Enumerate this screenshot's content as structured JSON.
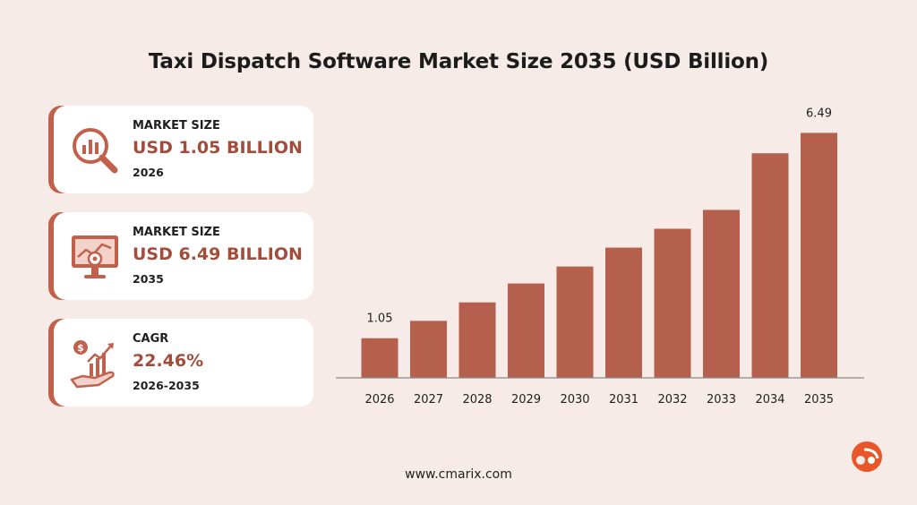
{
  "title": "Taxi Dispatch Software Market Size 2035 (USD Billion)",
  "cards": [
    {
      "label": "MARKET SIZE",
      "value": "USD 1.05 BILLION",
      "sub": "2026",
      "icon": "magnifier-chart-icon"
    },
    {
      "label": "MARKET SIZE",
      "value": "USD 6.49 BILLION",
      "sub": "2035",
      "icon": "monitor-gear-chart-icon"
    },
    {
      "label": "CAGR",
      "value": "22.46%",
      "sub": "2026-2035",
      "icon": "hand-dollar-growth-icon"
    }
  ],
  "colors": {
    "bar": "#b5604d",
    "accent": "#c1614c",
    "value_text": "#a44c3a",
    "background": "#f6ebe7"
  },
  "chart_data": {
    "type": "bar",
    "title": "Taxi Dispatch Software Market Size 2035 (USD Billion)",
    "categories": [
      "2026",
      "2027",
      "2028",
      "2029",
      "2030",
      "2031",
      "2032",
      "2033",
      "2034",
      "2035"
    ],
    "values": [
      1.05,
      1.51,
      2.0,
      2.5,
      2.95,
      3.45,
      3.95,
      4.45,
      5.95,
      6.49
    ],
    "data_labels": {
      "0": "1.05",
      "9": "6.49"
    },
    "ylim": [
      0,
      6.5
    ],
    "xlabel": "",
    "ylabel": "",
    "grid": false,
    "legend": "none"
  },
  "footer": {
    "url": "www.cmarix.com"
  }
}
